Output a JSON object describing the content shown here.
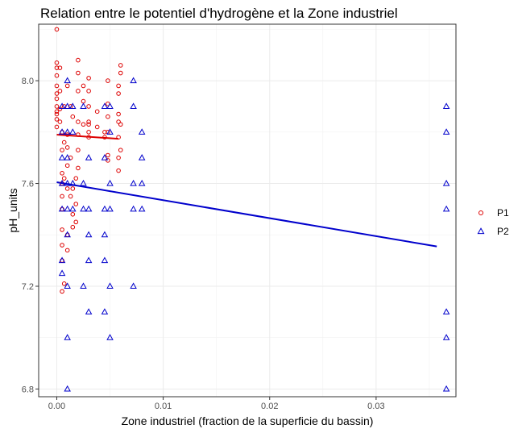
{
  "chart_data": {
    "type": "scatter",
    "title": "Relation entre le potentiel d'hydrogène et la Zone industriel",
    "xlabel": "Zone industriel (fraction de la superficie du bassin)",
    "ylabel": "pH_units",
    "xlim": [
      -0.0017,
      0.0375
    ],
    "ylim": [
      6.77,
      8.22
    ],
    "x_ticks": [
      0,
      0.01,
      0.02,
      0.03
    ],
    "x_tick_labels": [
      "0.00",
      "0.01",
      "0.02",
      "0.03"
    ],
    "y_ticks": [
      6.8,
      7.2,
      7.6,
      8.0
    ],
    "y_tick_labels": [
      "6.8",
      "7.2",
      "7.6",
      "8.0"
    ],
    "legend_position": "right",
    "series": [
      {
        "name": "P1",
        "color": "#dd0000",
        "marker": "circle",
        "points": [
          [
            0.0,
            8.2
          ],
          [
            0.0,
            8.07
          ],
          [
            0.0,
            8.05
          ],
          [
            0.0,
            8.02
          ],
          [
            0.0,
            7.98
          ],
          [
            0.0,
            7.95
          ],
          [
            0.0,
            7.93
          ],
          [
            0.0,
            7.9
          ],
          [
            0.0,
            7.88
          ],
          [
            0.0,
            7.87
          ],
          [
            0.0,
            7.85
          ],
          [
            0.0,
            7.82
          ],
          [
            0.0003,
            8.05
          ],
          [
            0.0003,
            7.96
          ],
          [
            0.0003,
            7.89
          ],
          [
            0.0003,
            7.84
          ],
          [
            0.0005,
            7.8
          ],
          [
            0.0005,
            7.73
          ],
          [
            0.0005,
            7.64
          ],
          [
            0.0005,
            7.6
          ],
          [
            0.0005,
            7.55
          ],
          [
            0.0005,
            7.5
          ],
          [
            0.0005,
            7.42
          ],
          [
            0.0005,
            7.36
          ],
          [
            0.0005,
            7.3
          ],
          [
            0.0005,
            7.18
          ],
          [
            0.0007,
            7.9
          ],
          [
            0.0007,
            7.76
          ],
          [
            0.0007,
            7.62
          ],
          [
            0.0007,
            7.21
          ],
          [
            0.001,
            7.98
          ],
          [
            0.001,
            7.79
          ],
          [
            0.001,
            7.74
          ],
          [
            0.001,
            7.67
          ],
          [
            0.001,
            7.58
          ],
          [
            0.001,
            7.4
          ],
          [
            0.001,
            7.34
          ],
          [
            0.0013,
            7.9
          ],
          [
            0.0013,
            7.7
          ],
          [
            0.0013,
            7.55
          ],
          [
            0.0015,
            7.86
          ],
          [
            0.0015,
            7.58
          ],
          [
            0.0015,
            7.48
          ],
          [
            0.0015,
            7.43
          ],
          [
            0.0018,
            7.62
          ],
          [
            0.0018,
            7.52
          ],
          [
            0.0018,
            7.45
          ],
          [
            0.002,
            8.08
          ],
          [
            0.002,
            8.03
          ],
          [
            0.002,
            7.96
          ],
          [
            0.002,
            7.84
          ],
          [
            0.002,
            7.79
          ],
          [
            0.002,
            7.73
          ],
          [
            0.002,
            7.66
          ],
          [
            0.0025,
            7.98
          ],
          [
            0.0025,
            7.92
          ],
          [
            0.0025,
            7.83
          ],
          [
            0.003,
            8.01
          ],
          [
            0.003,
            7.96
          ],
          [
            0.003,
            7.9
          ],
          [
            0.003,
            7.84
          ],
          [
            0.003,
            7.83
          ],
          [
            0.003,
            7.8
          ],
          [
            0.003,
            7.78
          ],
          [
            0.0038,
            7.88
          ],
          [
            0.0038,
            7.82
          ],
          [
            0.0045,
            7.8
          ],
          [
            0.0045,
            7.78
          ],
          [
            0.0048,
            8.0
          ],
          [
            0.0048,
            7.91
          ],
          [
            0.0048,
            7.86
          ],
          [
            0.0048,
            7.8
          ],
          [
            0.0048,
            7.71
          ],
          [
            0.0048,
            7.69
          ],
          [
            0.0058,
            7.98
          ],
          [
            0.0058,
            7.95
          ],
          [
            0.0058,
            7.87
          ],
          [
            0.0058,
            7.84
          ],
          [
            0.0058,
            7.78
          ],
          [
            0.0058,
            7.7
          ],
          [
            0.0058,
            7.65
          ],
          [
            0.006,
            8.06
          ],
          [
            0.006,
            8.03
          ],
          [
            0.006,
            7.83
          ],
          [
            0.006,
            7.73
          ]
        ],
        "trend": {
          "x": [
            0.0,
            0.0058
          ],
          "y": [
            7.79,
            7.774
          ]
        }
      },
      {
        "name": "P2",
        "color": "#0000cc",
        "marker": "triangle",
        "points": [
          [
            0.0005,
            7.9
          ],
          [
            0.0005,
            7.8
          ],
          [
            0.0005,
            7.7
          ],
          [
            0.0005,
            7.6
          ],
          [
            0.0005,
            7.5
          ],
          [
            0.0005,
            7.3
          ],
          [
            0.0005,
            7.25
          ],
          [
            0.001,
            8.0
          ],
          [
            0.001,
            7.9
          ],
          [
            0.001,
            7.8
          ],
          [
            0.001,
            7.7
          ],
          [
            0.001,
            7.6
          ],
          [
            0.001,
            7.5
          ],
          [
            0.001,
            7.4
          ],
          [
            0.001,
            7.2
          ],
          [
            0.001,
            7.0
          ],
          [
            0.001,
            6.8
          ],
          [
            0.0015,
            7.9
          ],
          [
            0.0015,
            7.8
          ],
          [
            0.0015,
            7.6
          ],
          [
            0.0015,
            7.5
          ],
          [
            0.0025,
            7.9
          ],
          [
            0.0025,
            7.6
          ],
          [
            0.0025,
            7.5
          ],
          [
            0.0025,
            7.2
          ],
          [
            0.003,
            7.7
          ],
          [
            0.003,
            7.5
          ],
          [
            0.003,
            7.4
          ],
          [
            0.003,
            7.3
          ],
          [
            0.003,
            7.1
          ],
          [
            0.0045,
            7.9
          ],
          [
            0.0045,
            7.7
          ],
          [
            0.0045,
            7.5
          ],
          [
            0.0045,
            7.4
          ],
          [
            0.0045,
            7.3
          ],
          [
            0.0045,
            7.1
          ],
          [
            0.005,
            7.9
          ],
          [
            0.005,
            7.8
          ],
          [
            0.005,
            7.6
          ],
          [
            0.005,
            7.5
          ],
          [
            0.005,
            7.2
          ],
          [
            0.005,
            7.0
          ],
          [
            0.0072,
            8.0
          ],
          [
            0.0072,
            7.9
          ],
          [
            0.0072,
            7.6
          ],
          [
            0.0072,
            7.5
          ],
          [
            0.0072,
            7.2
          ],
          [
            0.008,
            7.8
          ],
          [
            0.008,
            7.7
          ],
          [
            0.008,
            7.6
          ],
          [
            0.008,
            7.5
          ],
          [
            0.0366,
            7.9
          ],
          [
            0.0366,
            7.8
          ],
          [
            0.0366,
            7.6
          ],
          [
            0.0366,
            7.5
          ],
          [
            0.0366,
            7.1
          ],
          [
            0.0366,
            7.0
          ],
          [
            0.0366,
            6.8
          ]
        ],
        "trend": {
          "x": [
            0.0,
            0.0357
          ],
          "y": [
            7.605,
            7.355
          ]
        }
      }
    ]
  }
}
